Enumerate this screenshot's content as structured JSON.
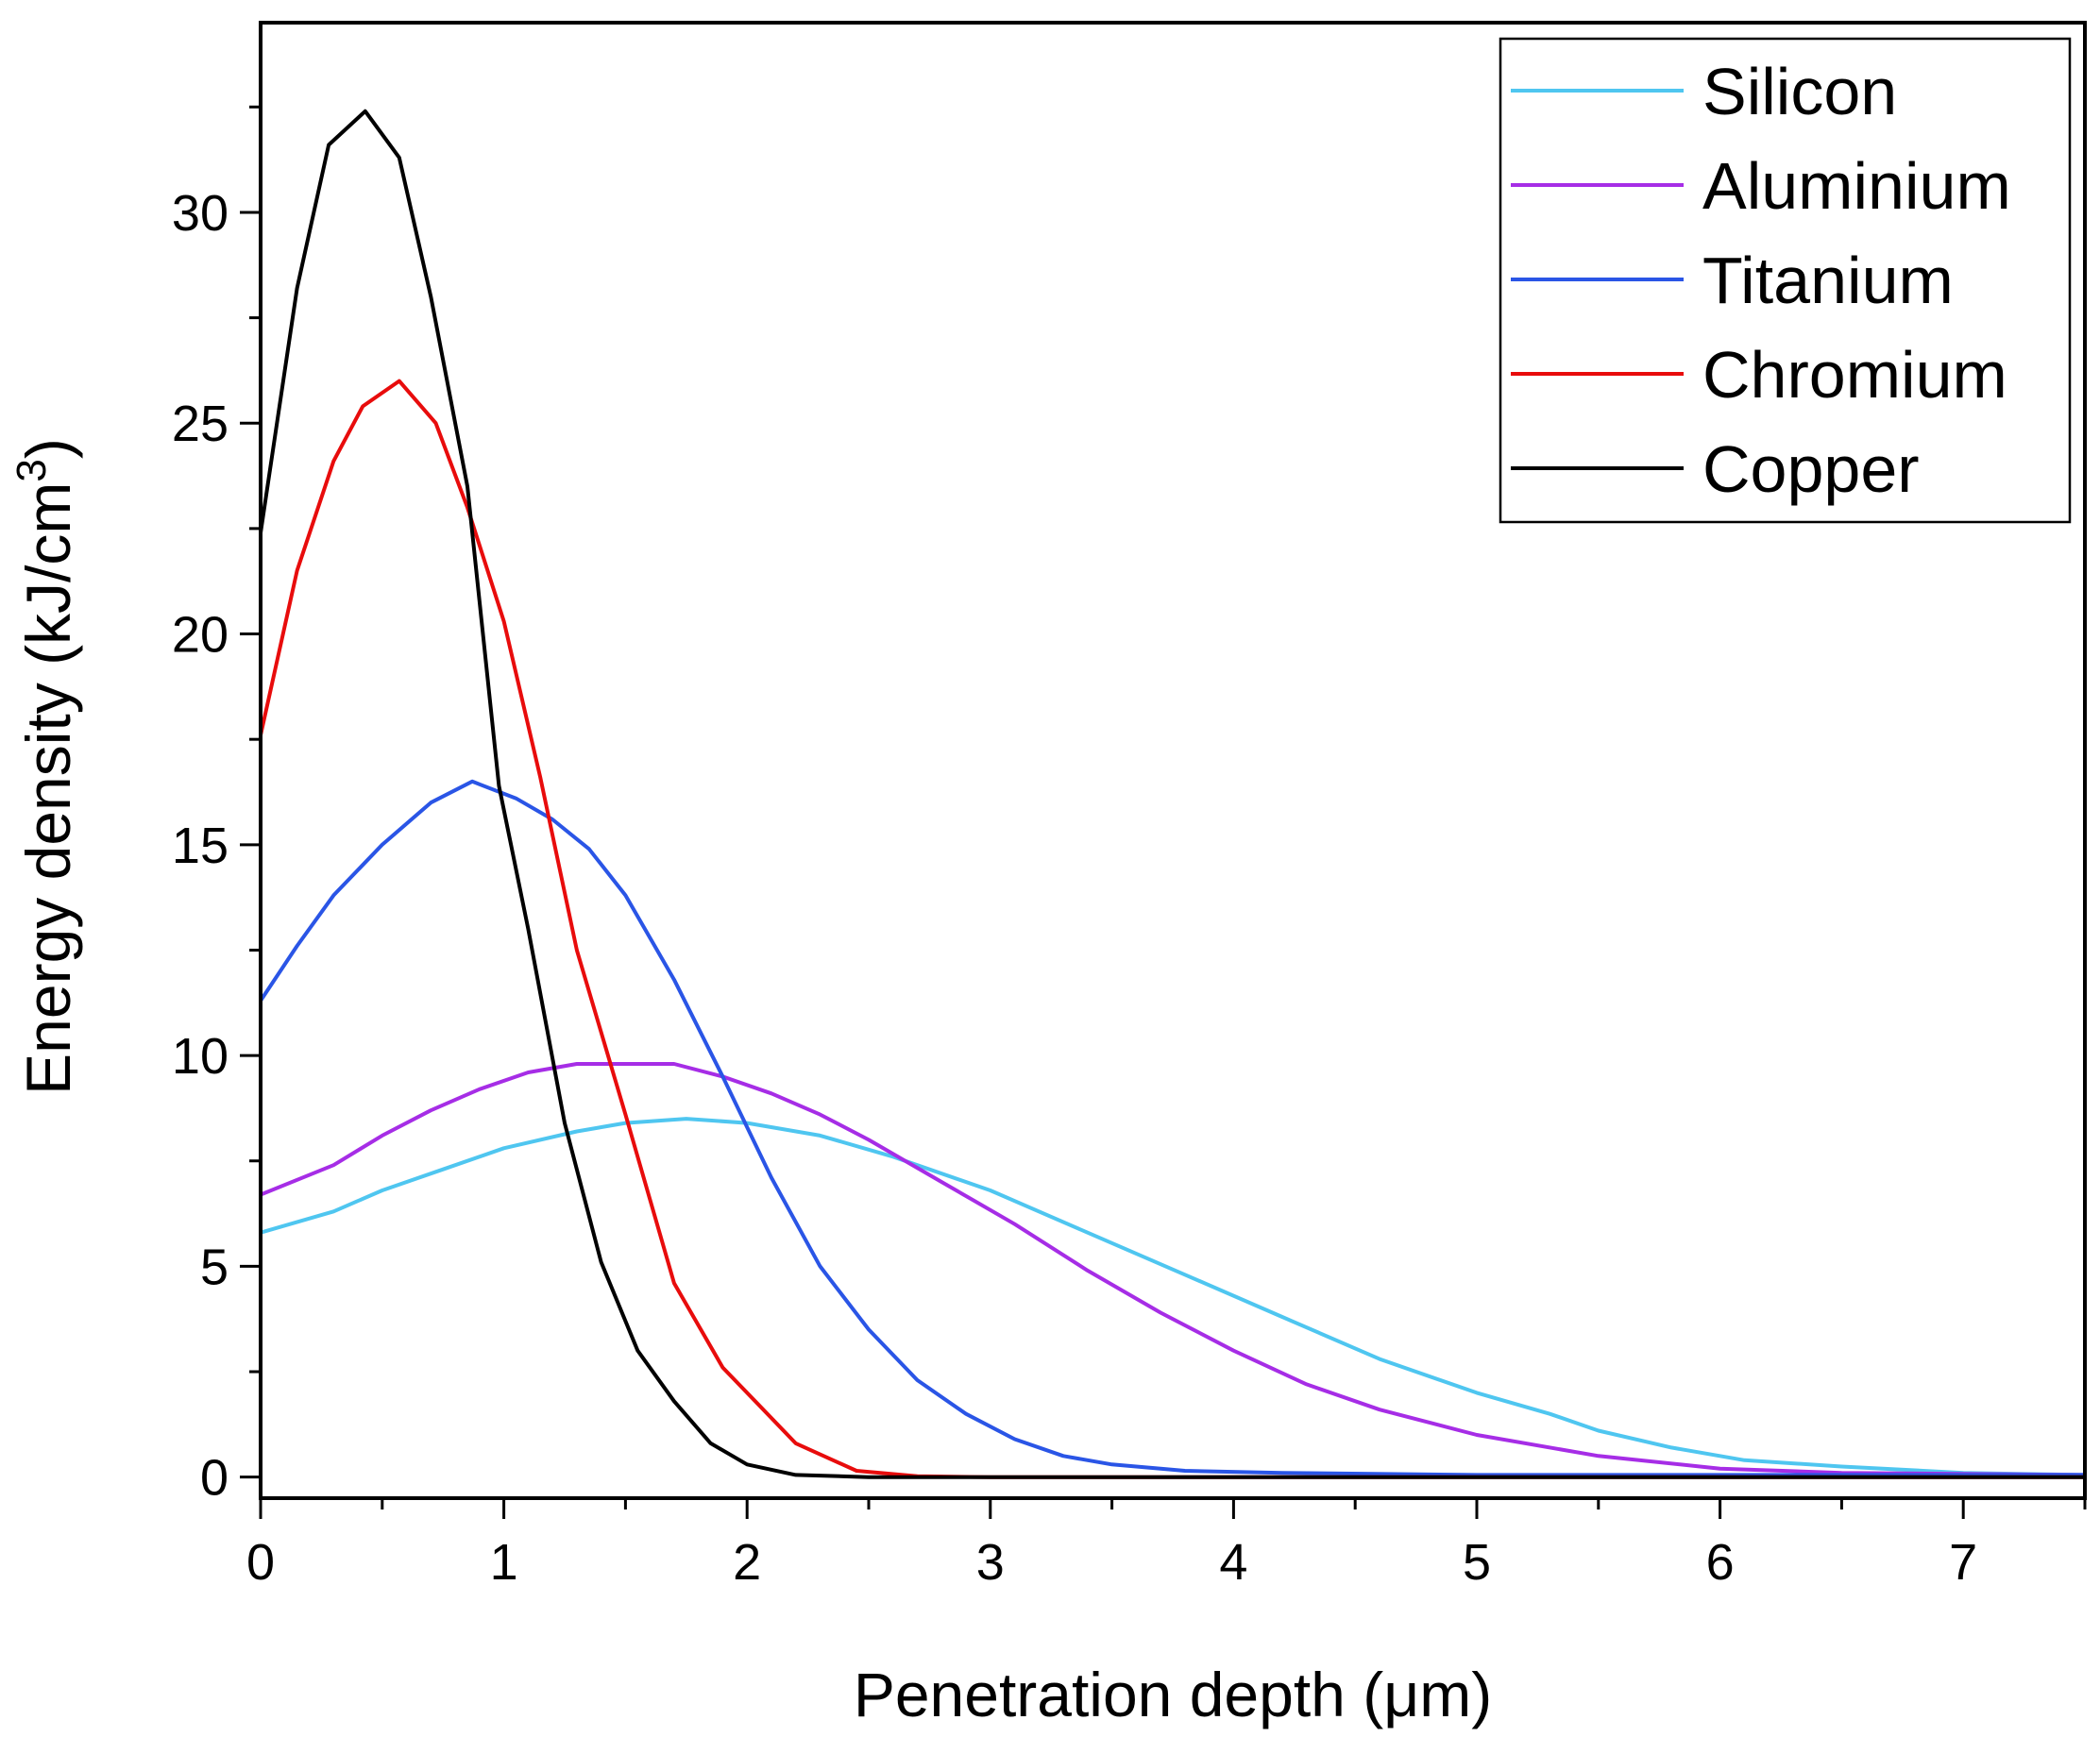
{
  "chart_data": {
    "type": "line",
    "xlabel": "Penetration depth (μm)",
    "ylabel_main": "Energy density (kJ/cm",
    "ylabel_sup": "3",
    "ylabel_close": ")",
    "xlim": [
      0,
      7.5
    ],
    "ylim": [
      -0.5,
      34.5
    ],
    "xticks": [
      0,
      1,
      2,
      3,
      4,
      5,
      6,
      7
    ],
    "xtick_labels": [
      "0",
      "1",
      "2",
      "3",
      "4",
      "5",
      "6",
      "7"
    ],
    "yticks": [
      0,
      5,
      10,
      15,
      20,
      25,
      30
    ],
    "ytick_labels": [
      "0",
      "5",
      "10",
      "15",
      "20",
      "25",
      "30"
    ],
    "grid": false,
    "legend_position": "top-right",
    "series": [
      {
        "name": "Silicon",
        "color": "#4fc6f0",
        "x": [
          0,
          0.3,
          0.5,
          0.75,
          1.0,
          1.3,
          1.5,
          1.75,
          2.0,
          2.3,
          2.6,
          3.0,
          3.4,
          3.8,
          4.2,
          4.6,
          5.0,
          5.3,
          5.5,
          5.8,
          6.1,
          6.5,
          7.0,
          7.5
        ],
        "y": [
          5.8,
          6.3,
          6.8,
          7.3,
          7.8,
          8.2,
          8.4,
          8.5,
          8.4,
          8.1,
          7.6,
          6.8,
          5.8,
          4.8,
          3.8,
          2.8,
          2.0,
          1.5,
          1.1,
          0.7,
          0.4,
          0.25,
          0.1,
          0.05
        ]
      },
      {
        "name": "Aluminium",
        "color": "#a62de6",
        "x": [
          0,
          0.3,
          0.5,
          0.7,
          0.9,
          1.1,
          1.3,
          1.5,
          1.7,
          1.9,
          2.1,
          2.3,
          2.5,
          2.8,
          3.1,
          3.4,
          3.7,
          4.0,
          4.3,
          4.6,
          5.0,
          5.5,
          6.0,
          6.5,
          7.5
        ],
        "y": [
          6.7,
          7.4,
          8.1,
          8.7,
          9.2,
          9.6,
          9.8,
          9.8,
          9.8,
          9.5,
          9.1,
          8.6,
          8.0,
          7.0,
          6.0,
          4.9,
          3.9,
          3.0,
          2.2,
          1.6,
          1.0,
          0.5,
          0.2,
          0.1,
          0.05
        ]
      },
      {
        "name": "Titanium",
        "color": "#2a55e6",
        "x": [
          0,
          0.15,
          0.3,
          0.5,
          0.7,
          0.87,
          1.05,
          1.2,
          1.35,
          1.5,
          1.7,
          1.9,
          2.1,
          2.3,
          2.5,
          2.7,
          2.9,
          3.1,
          3.3,
          3.5,
          3.8,
          4.2,
          5.0,
          6.0,
          7.5
        ],
        "y": [
          11.3,
          12.6,
          13.8,
          15.0,
          16.0,
          16.5,
          16.1,
          15.6,
          14.9,
          13.8,
          11.8,
          9.5,
          7.1,
          5.0,
          3.5,
          2.3,
          1.5,
          0.9,
          0.5,
          0.3,
          0.15,
          0.1,
          0.05,
          0.05,
          0.05
        ]
      },
      {
        "name": "Chromium",
        "color": "#e80c0c",
        "x": [
          0,
          0.15,
          0.3,
          0.42,
          0.57,
          0.72,
          0.85,
          1.0,
          1.15,
          1.3,
          1.5,
          1.7,
          1.9,
          2.05,
          2.2,
          2.45,
          2.7,
          3.0,
          7.5
        ],
        "y": [
          17.6,
          21.5,
          24.1,
          25.4,
          26.0,
          25.0,
          23.0,
          20.3,
          16.6,
          12.5,
          8.6,
          4.6,
          2.6,
          1.7,
          0.8,
          0.15,
          0.02,
          0.0,
          0.0
        ]
      },
      {
        "name": "Copper",
        "color": "#000000",
        "x": [
          0,
          0.15,
          0.28,
          0.43,
          0.57,
          0.7,
          0.85,
          0.98,
          1.1,
          1.25,
          1.4,
          1.55,
          1.7,
          1.85,
          2.0,
          2.2,
          2.5,
          7.5
        ],
        "y": [
          22.4,
          28.2,
          31.6,
          32.4,
          31.3,
          28.0,
          23.5,
          16.4,
          13.0,
          8.4,
          5.1,
          3.0,
          1.8,
          0.8,
          0.3,
          0.05,
          0.0,
          0.0
        ]
      }
    ]
  }
}
